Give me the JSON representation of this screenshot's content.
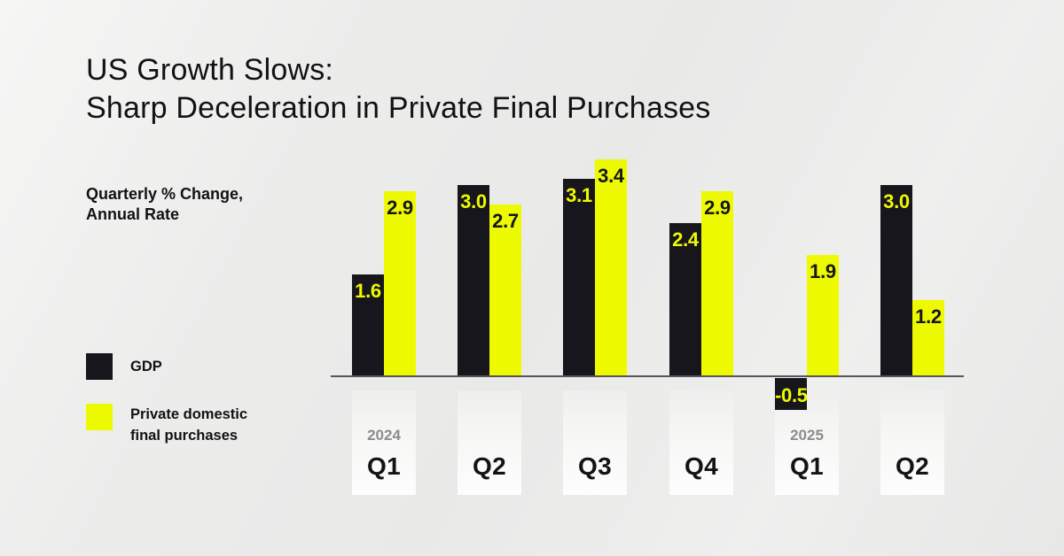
{
  "title": {
    "line1": "US Growth Slows:",
    "line2": "Sharp Deceleration in Private Final Purchases"
  },
  "subtitle": {
    "line1": "Quarterly % Change,",
    "line2": "Annual Rate"
  },
  "legend": {
    "gdp": {
      "label": "GDP",
      "color": "#16161c"
    },
    "pdfp": {
      "label_line1": "Private domestic",
      "label_line2": "final purchases",
      "color": "#eefa00"
    }
  },
  "colors": {
    "gdp_bar": "#16161c",
    "pdfp_bar": "#eefa00",
    "gdp_value_label": "#eefa00",
    "pdfp_value_label": "#16161c",
    "axis_line": "#55555a",
    "year_label": "#8c8c8c",
    "text": "#121215"
  },
  "chart_data": {
    "type": "bar",
    "title": "US Growth Slows: Sharp Deceleration in Private Final Purchases",
    "ylabel": "Quarterly % Change, Annual Rate",
    "grid": false,
    "legend_position": "left",
    "value_labels": true,
    "ylim": [
      -0.5,
      3.4
    ],
    "categories": [
      {
        "quarter": "Q1",
        "year": "2024"
      },
      {
        "quarter": "Q2",
        "year": ""
      },
      {
        "quarter": "Q3",
        "year": ""
      },
      {
        "quarter": "Q4",
        "year": ""
      },
      {
        "quarter": "Q1",
        "year": "2025"
      },
      {
        "quarter": "Q2",
        "year": ""
      }
    ],
    "series": [
      {
        "name": "GDP",
        "color": "#16161c",
        "label_color": "#eefa00",
        "values": [
          1.6,
          3.0,
          3.1,
          2.4,
          -0.5,
          3.0
        ]
      },
      {
        "name": "Private domestic final purchases",
        "color": "#eefa00",
        "label_color": "#16161c",
        "values": [
          2.9,
          2.7,
          3.4,
          2.9,
          1.9,
          1.2
        ]
      }
    ]
  }
}
